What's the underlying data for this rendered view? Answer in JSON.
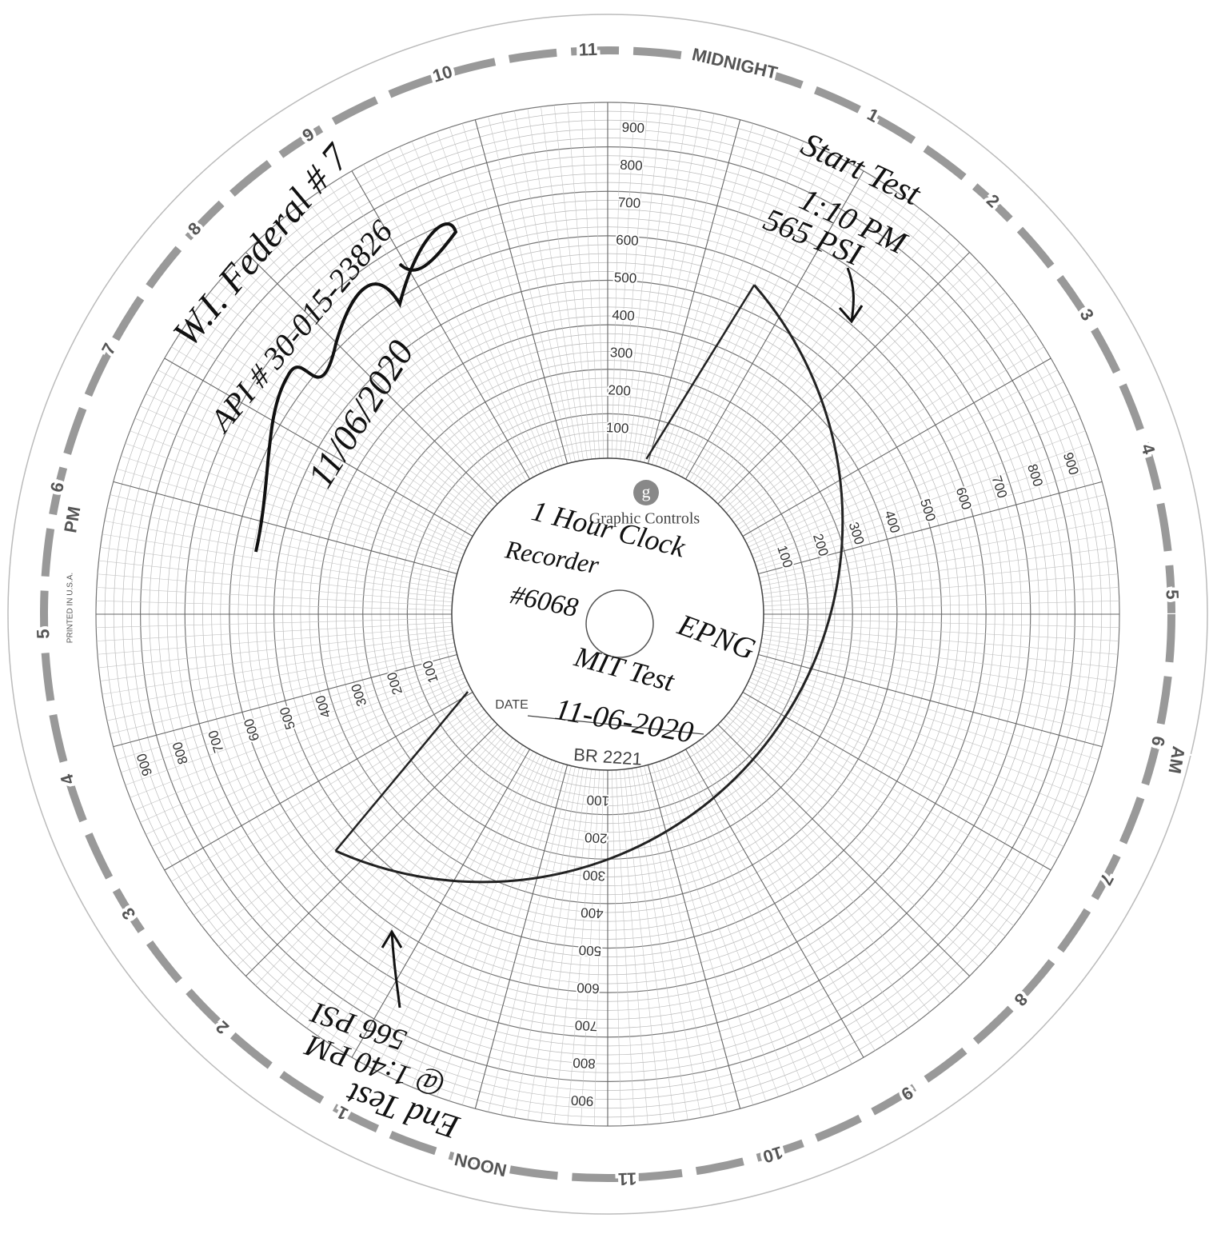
{
  "rim": {
    "hours": [
      "MIDNIGHT",
      "1",
      "2",
      "3",
      "4",
      "5",
      "6",
      "7",
      "8",
      "9",
      "10",
      "11",
      "NOON",
      "1",
      "2",
      "3",
      "4",
      "5",
      "6",
      "7",
      "8",
      "9",
      "10",
      "11"
    ],
    "am": "AM",
    "pm": "PM"
  },
  "scale": {
    "values": [
      100,
      200,
      300,
      400,
      500,
      600,
      700,
      800,
      900
    ]
  },
  "hub": {
    "brand": "Graphic Controls",
    "date_label": "DATE",
    "chart_number": "BR 2221",
    "side_print": "PRINTED IN U.S.A."
  },
  "notes": {
    "well": "W.I. Federal # 7",
    "api": "API # 30-015-23826",
    "signed_date": "11/06/2020",
    "start": [
      "Start Test",
      "1:10 PM",
      "565 PSI"
    ],
    "hub": [
      "1 Hour Clock",
      "Recorder",
      "#6068",
      "EPNG",
      "MIT Test",
      "11-06-2020"
    ],
    "end": [
      "End Test",
      "@ 1:40 PM",
      "566 PSI"
    ]
  },
  "trace": {
    "values": [
      565,
      566
    ]
  }
}
